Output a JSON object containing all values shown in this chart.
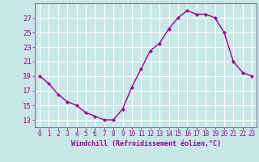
{
  "x": [
    0,
    1,
    2,
    3,
    4,
    5,
    6,
    7,
    8,
    9,
    10,
    11,
    12,
    13,
    14,
    15,
    16,
    17,
    18,
    19,
    20,
    21,
    22,
    23
  ],
  "y": [
    19,
    18,
    16.5,
    15.5,
    15,
    14,
    13.5,
    13,
    13,
    14.5,
    17.5,
    20,
    22.5,
    23.5,
    25.5,
    27,
    28,
    27.5,
    27.5,
    27,
    25,
    21,
    19.5,
    19
  ],
  "line_color": "#990099",
  "marker": "D",
  "marker_size": 2,
  "bg_color": "#c8e8e8",
  "grid_color": "#ffffff",
  "xlabel": "Windchill (Refroidissement éolien,°C)",
  "xlabel_color": "#990099",
  "tick_color": "#990099",
  "ylim": [
    12,
    29
  ],
  "xlim": [
    -0.5,
    23.5
  ],
  "yticks": [
    13,
    15,
    17,
    19,
    21,
    23,
    25,
    27
  ],
  "xticks": [
    0,
    1,
    2,
    3,
    4,
    5,
    6,
    7,
    8,
    9,
    10,
    11,
    12,
    13,
    14,
    15,
    16,
    17,
    18,
    19,
    20,
    21,
    22,
    23
  ],
  "linewidth": 1.0,
  "spine_color": "#7a7a9a",
  "xlabel_fontsize": 6.0,
  "ytick_fontsize": 6.5,
  "xtick_fontsize": 5.5
}
